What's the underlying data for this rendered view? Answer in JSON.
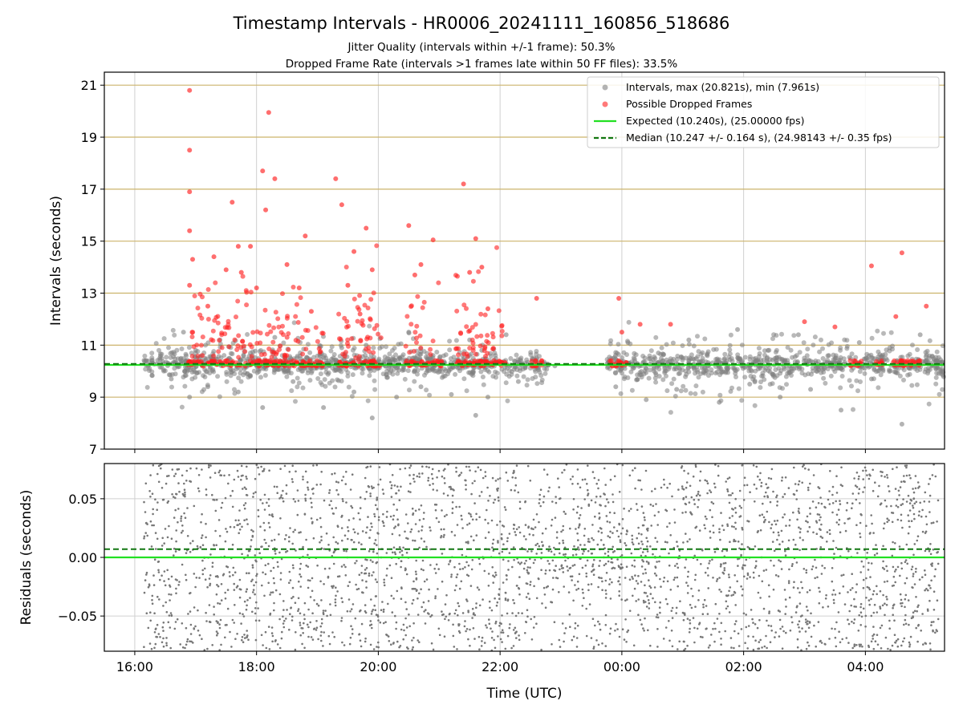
{
  "chart_data": [
    {
      "type": "scatter",
      "title": "Timestamp Intervals - HR0006_20241111_160856_518686",
      "subtitle_lines": [
        "Jitter Quality (intervals within +/-1 frame): 50.3%",
        "Dropped Frame Rate (intervals >1 frames late within 50 FF files): 33.5%"
      ],
      "ylabel": "Intervals (seconds)",
      "xlim_hours_utc": [
        15.5,
        29.3
      ],
      "ylim": [
        7,
        21.5
      ],
      "yticks": [
        7,
        9,
        11,
        13,
        15,
        17,
        19,
        21
      ],
      "y_tick_labels": [
        "7",
        "9",
        "11",
        "13",
        "15",
        "17",
        "19",
        "21"
      ],
      "grid": {
        "vertical": true,
        "horizontal_lines_color": "#ccb36b"
      },
      "legend_position": "top-right",
      "legend": [
        {
          "label": "Intervals, max (20.821s), min (7.961s)",
          "kind": "dot",
          "color": "#808080"
        },
        {
          "label": "Possible Dropped Frames",
          "kind": "dot",
          "color": "#ff2020"
        },
        {
          "label": "Expected (10.240s), (25.00000 fps)",
          "kind": "line",
          "color": "#22e022"
        },
        {
          "label": "Median (10.247 +/- 0.164 s), (24.98143 +/- 0.35 fps)",
          "kind": "dashed",
          "color": "#117711"
        }
      ],
      "expected_interval": 10.24,
      "median_interval": 10.247,
      "series": [
        {
          "name": "Intervals",
          "color": "#808080",
          "density_hint": "dense band around 10.25 s from 16:10 to 05:30 UTC with spread about 8.0 to 11.9 s; gap 22:45-23:45",
          "x_hours_utc": [
            16.3,
            16.6,
            16.8,
            16.9,
            17.0,
            17.2,
            17.4,
            17.7,
            17.9,
            18.1,
            18.3,
            18.6,
            18.9,
            19.1,
            19.4,
            19.6,
            19.8,
            19.9,
            20.1,
            20.3,
            20.5,
            20.7,
            20.9,
            21.2,
            21.5,
            21.6,
            21.7,
            21.8,
            22.1,
            22.3,
            22.6,
            22.9,
            23.9,
            24.1,
            24.4,
            24.6,
            24.9,
            25.1,
            25.4,
            25.6,
            25.9,
            26.1,
            26.4,
            26.6,
            26.9,
            27.1,
            27.4,
            27.6,
            27.9,
            28.1,
            28.4,
            28.6,
            28.9,
            29.1
          ],
          "y_seconds": [
            10.3,
            9.7,
            11.5,
            9.0,
            10.8,
            9.4,
            11.2,
            9.2,
            10.7,
            8.6,
            11.3,
            9.6,
            10.1,
            8.6,
            10.9,
            9.2,
            11.0,
            8.2,
            10.4,
            9.0,
            11.5,
            9.4,
            10.6,
            9.1,
            11.2,
            8.3,
            10.8,
            9.0,
            11.4,
            9.6,
            10.5,
            10.2,
            9.4,
            11.1,
            8.9,
            10.7,
            9.3,
            11.2,
            10.0,
            8.8,
            11.6,
            9.5,
            10.8,
            9.0,
            11.4,
            9.3,
            10.6,
            8.5,
            11.1,
            9.7,
            10.9,
            7.96,
            11.4,
            10.2
          ],
          "extreme_points": {
            "max": 20.821,
            "min": 7.961
          }
        },
        {
          "name": "Possible Dropped Frames",
          "color": "#ff2020",
          "x_hours_utc": [
            16.9,
            16.9,
            16.9,
            16.9,
            16.95,
            16.9,
            17.2,
            17.3,
            17.5,
            17.6,
            17.7,
            17.75,
            17.9,
            18.0,
            18.1,
            18.15,
            18.2,
            18.3,
            18.5,
            18.7,
            18.8,
            18.9,
            19.3,
            19.4,
            19.5,
            19.6,
            19.7,
            19.8,
            19.9,
            20.5,
            20.6,
            20.7,
            20.9,
            21.4,
            21.5,
            21.6,
            21.7,
            21.8,
            22.6,
            23.95,
            24.0,
            24.3,
            24.8,
            27.0,
            27.5,
            28.1,
            28.5,
            28.6,
            29.0
          ],
          "y_seconds": [
            20.8,
            18.5,
            16.9,
            15.4,
            14.3,
            13.3,
            12.5,
            14.4,
            13.9,
            16.5,
            14.8,
            13.8,
            14.8,
            13.2,
            17.7,
            16.2,
            19.95,
            17.4,
            14.1,
            13.2,
            15.2,
            12.3,
            17.4,
            16.4,
            13.3,
            14.6,
            12.2,
            15.5,
            13.9,
            15.6,
            13.7,
            14.1,
            15.05,
            17.2,
            13.8,
            15.1,
            14.0,
            12.4,
            12.8,
            12.8,
            11.5,
            11.8,
            11.8,
            11.9,
            11.7,
            14.05,
            12.1,
            14.55,
            12.5
          ],
          "baseline_cluster_y": 10.3,
          "baseline_segments_hours_utc": [
            [
              16.85,
              19.1
            ],
            [
              19.35,
              20.05
            ],
            [
              20.45,
              21.05
            ],
            [
              21.25,
              22.1
            ],
            [
              22.5,
              22.7
            ],
            [
              23.8,
              24.1
            ],
            [
              27.75,
              27.95
            ],
            [
              28.15,
              28.3
            ],
            [
              28.45,
              28.95
            ]
          ]
        }
      ]
    },
    {
      "type": "scatter",
      "xlabel": "Time (UTC)",
      "ylabel": "Residuals (seconds)",
      "xlim_hours_utc": [
        15.5,
        29.3
      ],
      "ylim": [
        -0.08,
        0.08
      ],
      "yticks": [
        -0.05,
        0.0,
        0.05
      ],
      "y_tick_labels": [
        "−0.05",
        "0.00",
        "0.05"
      ],
      "xticks_hours_utc": [
        16,
        18,
        20,
        22,
        24,
        26,
        28
      ],
      "x_tick_labels": [
        "16:00",
        "18:00",
        "20:00",
        "22:00",
        "00:00",
        "02:00",
        "04:00"
      ],
      "grid": true,
      "expected_residual": 0.0,
      "median_residual": 0.007,
      "series": [
        {
          "name": "Residuals",
          "color": "#777777",
          "density_hint": "uniform scatter from 16:10 to 05:20 UTC across -0.08 to 0.08 s, denser near 0 around 22:30-00:30"
        }
      ]
    }
  ]
}
